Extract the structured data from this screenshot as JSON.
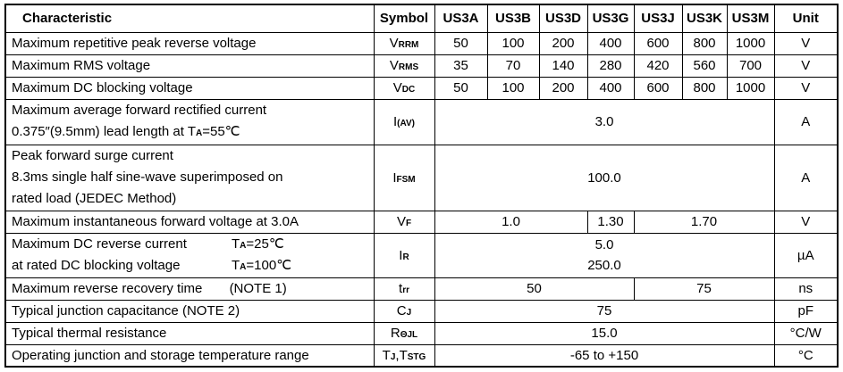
{
  "header": {
    "characteristic": "Characteristic",
    "symbol": "Symbol",
    "parts": [
      "US3A",
      "US3B",
      "US3D",
      "US3G",
      "US3J",
      "US3K",
      "US3M"
    ],
    "unit": "Unit"
  },
  "rows": {
    "vrrm": {
      "characteristic": "Maximum repetitive peak reverse voltage",
      "symbol": [
        {
          "t": "V"
        },
        {
          "t": "RRM",
          "s": 1
        }
      ],
      "values": [
        "50",
        "100",
        "200",
        "400",
        "600",
        "800",
        "1000"
      ],
      "unit": "V"
    },
    "vrms": {
      "characteristic": "Maximum RMS voltage",
      "symbol": [
        {
          "t": "V"
        },
        {
          "t": "RMS",
          "s": 1
        }
      ],
      "values": [
        "35",
        "70",
        "140",
        "280",
        "420",
        "560",
        "700"
      ],
      "unit": "V"
    },
    "vdc": {
      "characteristic": "Maximum DC blocking voltage",
      "symbol": [
        {
          "t": "V"
        },
        {
          "t": "DC",
          "s": 1
        }
      ],
      "values": [
        "50",
        "100",
        "200",
        "400",
        "600",
        "800",
        "1000"
      ],
      "unit": "V"
    },
    "iav": {
      "characteristic_line1": "Maximum average forward rectified current",
      "characteristic_line2": [
        {
          "t": "0.375″(9.5mm) lead length at T"
        },
        {
          "t": "A",
          "s": 1
        },
        {
          "t": "=55℃"
        }
      ],
      "symbol": [
        {
          "t": "I"
        },
        {
          "t": "(AV)",
          "s": 1
        }
      ],
      "value": "3.0",
      "unit": "A"
    },
    "ifsm": {
      "characteristic_line1": "Peak forward surge current",
      "characteristic_line2": "8.3ms single half sine-wave superimposed on",
      "characteristic_line3": "rated load (JEDEC Method)",
      "symbol": [
        {
          "t": "I"
        },
        {
          "t": "FSM",
          "s": 1
        }
      ],
      "value": "100.0",
      "unit": "A"
    },
    "vf": {
      "characteristic": "Maximum instantaneous forward voltage at 3.0A",
      "symbol": [
        {
          "t": "V"
        },
        {
          "t": "F",
          "s": 1
        }
      ],
      "values": [
        "1.0",
        "1.30",
        "1.70"
      ],
      "unit": "V"
    },
    "ir": {
      "characteristic_line1": "Maximum DC reverse current",
      "characteristic_line1_cond": [
        {
          "t": "T"
        },
        {
          "t": "A",
          "s": 1
        },
        {
          "t": "=25℃"
        }
      ],
      "characteristic_line2": "at rated DC blocking voltage",
      "characteristic_line2_cond": [
        {
          "t": "T"
        },
        {
          "t": "A",
          "s": 1
        },
        {
          "t": "=100℃"
        }
      ],
      "symbol": [
        {
          "t": "I"
        },
        {
          "t": "R",
          "s": 1
        }
      ],
      "value_line1": "5.0",
      "value_line2": "250.0",
      "unit": "µA"
    },
    "trr": {
      "characteristic": "Maximum reverse recovery time",
      "characteristic_note": "(NOTE 1)",
      "symbol": [
        {
          "t": "t"
        },
        {
          "t": "rr",
          "s": 1
        }
      ],
      "values": [
        "50",
        "75"
      ],
      "unit": "ns"
    },
    "cj": {
      "characteristic": "Typical junction capacitance (NOTE 2)",
      "symbol": [
        {
          "t": "C"
        },
        {
          "t": "J",
          "s": 1
        }
      ],
      "value": "75",
      "unit": "pF"
    },
    "rthjl": {
      "characteristic": "Typical thermal resistance",
      "symbol": [
        {
          "t": "R"
        },
        {
          "t": "ΘJL",
          "s": 1
        }
      ],
      "value": "15.0",
      "unit": "°C/W"
    },
    "tjtstg": {
      "characteristic": "Operating junction and storage temperature range",
      "symbol": [
        {
          "t": "T"
        },
        {
          "t": "J",
          "s": 1
        },
        {
          "t": ","
        },
        {
          "t": "T"
        },
        {
          "t": "STG",
          "s": 1
        }
      ],
      "value": "-65 to +150",
      "unit": "°C"
    }
  }
}
